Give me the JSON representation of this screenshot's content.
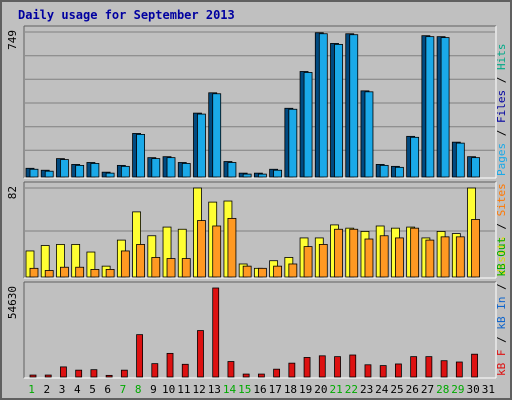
{
  "chart_data": {
    "type": "bar",
    "title": "Daily usage for September 2013",
    "categories": [
      "1",
      "2",
      "3",
      "4",
      "5",
      "6",
      "7",
      "8",
      "9",
      "10",
      "11",
      "12",
      "13",
      "14",
      "15",
      "16",
      "17",
      "18",
      "19",
      "20",
      "21",
      "22",
      "23",
      "24",
      "25",
      "26",
      "27",
      "28",
      "29",
      "30",
      "31"
    ],
    "weekend_days": [
      "1",
      "7",
      "8",
      "14",
      "15",
      "21",
      "22",
      "28",
      "29"
    ],
    "colors": {
      "hits": "#00ccaa",
      "files": "#1aa9e8",
      "pages": "#0066cc",
      "visits": "#ffff33",
      "sites": "#ff9922",
      "kbytes": "#dd1111",
      "title": "#0000a0",
      "weekend": "#00aa00"
    },
    "panels": [
      {
        "id": "hits",
        "ymax_label": "749",
        "ylim": [
          0,
          749
        ],
        "legend": [
          {
            "text": "Pages",
            "color": "#1aa9e8"
          },
          {
            "text": " / ",
            "color": "#000000"
          },
          {
            "text": "Files",
            "color": "#0000a0"
          },
          {
            "text": " / ",
            "color": "#000000"
          },
          {
            "text": "Hits",
            "color": "#00aa88"
          }
        ],
        "series": [
          {
            "name": "Hits",
            "values": [
              45,
              35,
              95,
              65,
              75,
              25,
              60,
              225,
              100,
              105,
              75,
              330,
              435,
              80,
              20,
              20,
              40,
              355,
              545,
              745,
              690,
              740,
              445,
              65,
              55,
              210,
              730,
              725,
              180,
              105,
              0
            ]
          },
          {
            "name": "Files",
            "values": [
              40,
              30,
              90,
              60,
              70,
              20,
              55,
              220,
              95,
              100,
              70,
              325,
              430,
              75,
              15,
              15,
              35,
              350,
              540,
              740,
              685,
              735,
              440,
              60,
              50,
              205,
              725,
              720,
              175,
              100,
              0
            ]
          }
        ]
      },
      {
        "id": "visits",
        "ymax_label": "82",
        "ylim": [
          0,
          82
        ],
        "legend": [
          {
            "text": "Visits",
            "color": "#dddd00"
          },
          {
            "text": " / ",
            "color": "#000000"
          },
          {
            "text": "Sites",
            "color": "#ff7700"
          }
        ],
        "series": [
          {
            "name": "Visits",
            "values": [
              24,
              29,
              30,
              30,
              23,
              10,
              34,
              60,
              38,
              46,
              44,
              82,
              69,
              70,
              12,
              8,
              15,
              18,
              36,
              36,
              48,
              45,
              42,
              47,
              45,
              46,
              36,
              42,
              40,
              82,
              0
            ]
          },
          {
            "name": "Sites",
            "values": [
              8,
              6,
              9,
              9,
              7,
              7,
              24,
              30,
              18,
              17,
              17,
              52,
              47,
              54,
              10,
              8,
              10,
              12,
              28,
              30,
              44,
              44,
              35,
              38,
              36,
              45,
              34,
              37,
              37,
              53,
              0
            ]
          }
        ]
      },
      {
        "id": "kbytes",
        "ymax_label": "54630",
        "ylim": [
          0,
          54630
        ],
        "legend": [
          {
            "text": "kB F",
            "color": "#dd1111"
          },
          {
            "text": " / ",
            "color": "#000000"
          },
          {
            "text": "kB In",
            "color": "#1166cc"
          },
          {
            "text": " / ",
            "color": "#000000"
          },
          {
            "text": "kB Out",
            "color": "#00aa00"
          }
        ],
        "series": [
          {
            "name": "kB F",
            "values": [
              1200,
              1200,
              6200,
              4200,
              4500,
              1000,
              4200,
              26000,
              8200,
              14500,
              7800,
              28500,
              54630,
              9500,
              1800,
              1800,
              4800,
              8500,
              12000,
              13000,
              12500,
              13500,
              7500,
              7000,
              8000,
              12500,
              12500,
              10000,
              9200,
              14000,
              0
            ]
          }
        ]
      }
    ]
  }
}
